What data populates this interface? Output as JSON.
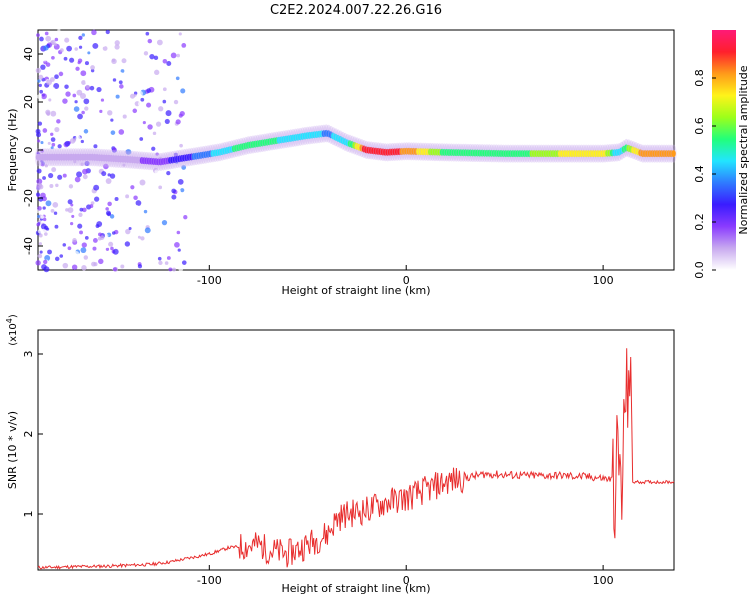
{
  "page_title": "C2E2.2024.007.22.26.G16",
  "colors": {
    "snr_line": "#e82e2e",
    "axes": "#000000",
    "colormap": [
      "#ffffff",
      "#c8a9ef",
      "#8a3bff",
      "#3a1cff",
      "#2f7bff",
      "#22e5ff",
      "#22ff7a",
      "#9dff1a",
      "#fff31a",
      "#ff9a1a",
      "#ff1f2d",
      "#ff1a77"
    ]
  },
  "chart_data": [
    {
      "type": "heatmap",
      "title": "C2E2.2024.007.22.26.G16",
      "xlabel": "Height of straight line (km)",
      "ylabel": "Frequency (Hz)",
      "xlim": [
        -187,
        136
      ],
      "ylim": [
        -50,
        50
      ],
      "xticks": [
        -100,
        0,
        100
      ],
      "yticks": [
        -40,
        -20,
        0,
        20,
        40
      ],
      "colorbar": {
        "label": "Normalized spectral amplitude",
        "range": [
          0.0,
          1.0
        ],
        "ticks": [
          0.0,
          0.2,
          0.4,
          0.6,
          0.8
        ]
      },
      "ridge": {
        "x": [
          -187,
          -160,
          -140,
          -125,
          -110,
          -95,
          -80,
          -65,
          -50,
          -40,
          -30,
          -20,
          -10,
          0,
          20,
          50,
          80,
          100,
          108,
          112,
          120,
          136
        ],
        "freq": [
          -3,
          -3,
          -4,
          -5,
          -3,
          -1,
          2,
          4,
          6,
          7,
          3,
          0,
          -1,
          -0.5,
          -1,
          -1.5,
          -1.5,
          -1.5,
          -1,
          1,
          -1.5,
          -1.5
        ],
        "amplitude": [
          0.05,
          0.06,
          0.1,
          0.2,
          0.3,
          0.45,
          0.55,
          0.5,
          0.45,
          0.4,
          0.45,
          0.95,
          0.9,
          0.85,
          0.55,
          0.5,
          0.7,
          0.75,
          0.4,
          0.6,
          0.8,
          0.85
        ]
      }
    },
    {
      "type": "line",
      "xlabel": "Height of straight line (km)",
      "ylabel": "SNR (10 * v/v)",
      "y_multiplier_label": "(x10",
      "y_multiplier_exp": "4",
      "y_multiplier_close": ")",
      "xlim": [
        -187,
        136
      ],
      "ylim": [
        0.3,
        3.3
      ],
      "xticks": [
        -100,
        0,
        100
      ],
      "yticks": [
        1,
        2,
        3
      ],
      "series": [
        {
          "x": [
            -187,
            -170,
            -150,
            -130,
            -120,
            -110,
            -100,
            -90,
            -80,
            -75,
            -70,
            -60,
            -50,
            -40,
            -35,
            -30,
            -20,
            -10,
            0,
            10,
            20,
            30,
            40,
            60,
            80,
            95,
            105,
            108,
            110,
            111,
            112,
            113,
            115,
            120,
            136
          ],
          "values": [
            0.33,
            0.34,
            0.35,
            0.37,
            0.4,
            0.45,
            0.5,
            0.58,
            0.6,
            0.62,
            0.55,
            0.5,
            0.62,
            0.75,
            0.95,
            1.0,
            1.05,
            1.15,
            1.2,
            1.3,
            1.4,
            1.45,
            1.5,
            1.48,
            1.48,
            1.46,
            1.43,
            1.6,
            1.2,
            2.5,
            2.3,
            3.1,
            1.4,
            1.4,
            1.4
          ]
        }
      ]
    }
  ]
}
